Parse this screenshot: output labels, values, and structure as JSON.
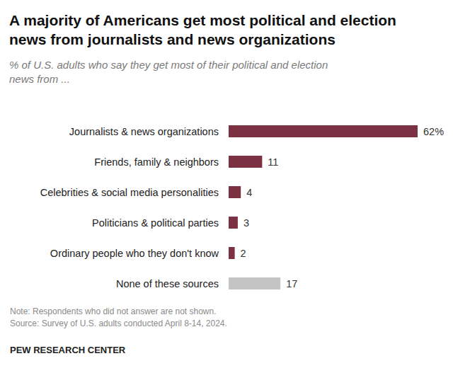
{
  "chart_data": {
    "type": "bar",
    "orientation": "horizontal",
    "title": "A majority of Americans get most political and election news from journalists and news organizations",
    "subtitle": "% of U.S. adults who say they get most of their political and election news from ...",
    "categories": [
      "Journalists & news organizations",
      "Friends, family & neighbors",
      "Celebrities & social media personalities",
      "Politicians & political parties",
      "Ordinary people who they don't know",
      "None of these sources"
    ],
    "values": [
      62,
      11,
      4,
      3,
      2,
      17
    ],
    "value_labels": [
      "62%",
      "11",
      "4",
      "3",
      "2",
      "17"
    ],
    "colors": [
      "#7b3142",
      "#7b3142",
      "#7b3142",
      "#7b3142",
      "#7b3142",
      "#c4c4c4"
    ],
    "xlim": [
      0,
      62
    ],
    "data_labels": true,
    "tick_labels": "y",
    "grid": false,
    "notes": [
      "Note: Respondents who did not answer are not shown.",
      "Source: Survey of U.S. adults conducted April 8-14, 2024."
    ],
    "footer": "PEW RESEARCH CENTER"
  }
}
